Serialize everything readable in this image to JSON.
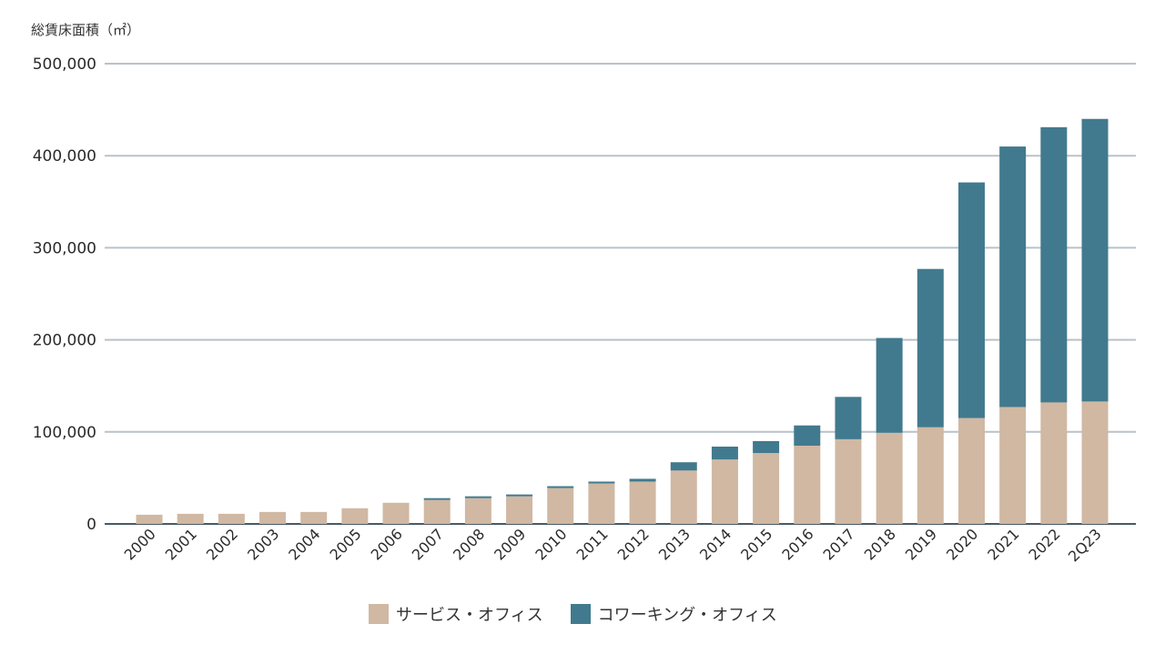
{
  "chart_data": {
    "type": "bar",
    "stacked": true,
    "ylabel": "総賃床面積（㎡）",
    "ylim": [
      0,
      500000
    ],
    "yticks": [
      0,
      100000,
      200000,
      300000,
      400000,
      500000
    ],
    "ytick_labels": [
      "0",
      "100,000",
      "200,000",
      "300,000",
      "400,000",
      "500,000"
    ],
    "grid": true,
    "legend_position": "bottom-center",
    "categories": [
      "2000",
      "2001",
      "2002",
      "2003",
      "2004",
      "2005",
      "2006",
      "2007",
      "2008",
      "2009",
      "2010",
      "2011",
      "2012",
      "2013",
      "2014",
      "2015",
      "2016",
      "2017",
      "2018",
      "2019",
      "2020",
      "2021",
      "2022",
      "2Q23"
    ],
    "series": [
      {
        "name": "サービス・オフィス",
        "color": "#d0b8a3",
        "values": [
          10000,
          11000,
          11000,
          13000,
          13000,
          17000,
          23000,
          26000,
          28000,
          30000,
          39000,
          44000,
          46000,
          58000,
          70000,
          77000,
          85000,
          92000,
          99000,
          105000,
          115000,
          127000,
          132000,
          133000
        ]
      },
      {
        "name": "コワーキング・オフィス",
        "color": "#417a8e",
        "values": [
          0,
          0,
          0,
          0,
          0,
          0,
          0,
          2000,
          2000,
          2000,
          2000,
          2000,
          3000,
          9000,
          14000,
          13000,
          22000,
          46000,
          103000,
          172000,
          256000,
          283000,
          299000,
          307000
        ]
      }
    ]
  }
}
